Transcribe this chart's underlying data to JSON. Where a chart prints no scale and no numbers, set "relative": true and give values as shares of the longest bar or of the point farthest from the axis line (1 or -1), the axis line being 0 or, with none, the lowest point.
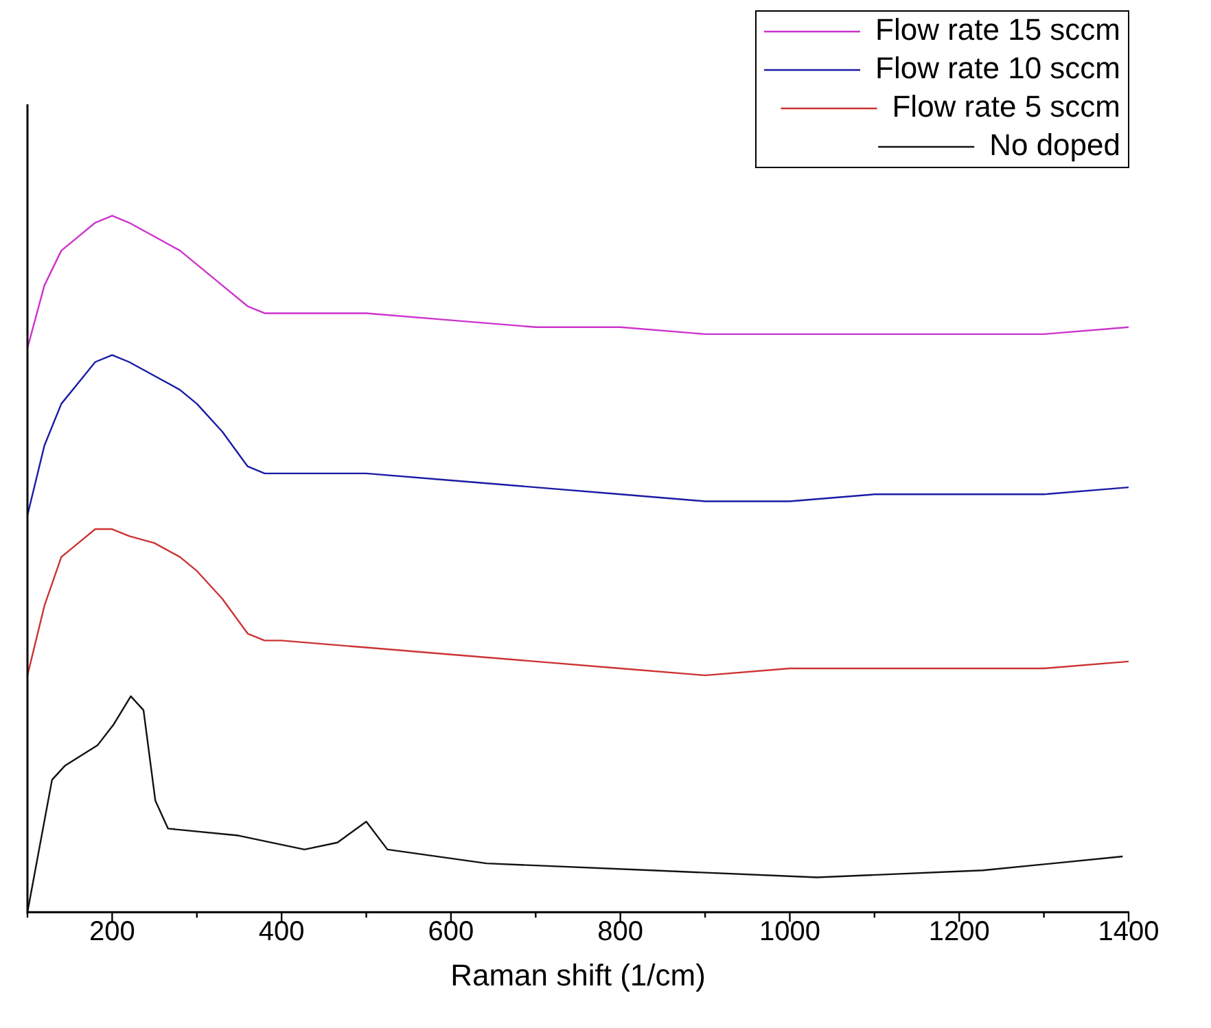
{
  "chart_data": {
    "type": "line",
    "xlabel": "Raman shift (1/cm)",
    "relative": true,
    "xlim": [
      100,
      1400
    ],
    "xticks": [
      {
        "value": 100,
        "label": null
      },
      200,
      {
        "value": 300,
        "label": null
      },
      400,
      {
        "value": 500,
        "label": null
      },
      600,
      {
        "value": 700,
        "label": null
      },
      800,
      {
        "value": 900,
        "label": null
      },
      1000,
      {
        "value": 1100,
        "label": null
      },
      1200,
      {
        "value": 1300,
        "label": null
      },
      1400
    ],
    "legend": "top right",
    "grid": false,
    "marker": "none",
    "line_style": "solid",
    "series": [
      {
        "name": "Flow rate 15 sccm",
        "color": "#cc33cc",
        "x": [
          100,
          120,
          140,
          160,
          180,
          200,
          220,
          250,
          280,
          300,
          330,
          360,
          380,
          400,
          500,
          600,
          700,
          800,
          900,
          1000,
          1100,
          1200,
          1300,
          1400
        ],
        "values": [
          0.81,
          0.9,
          0.95,
          0.97,
          0.99,
          1.0,
          0.99,
          0.97,
          0.95,
          0.93,
          0.9,
          0.87,
          0.86,
          0.86,
          0.86,
          0.85,
          0.84,
          0.84,
          0.83,
          0.83,
          0.83,
          0.83,
          0.83,
          0.84
        ]
      },
      {
        "name": "Flow rate 10 sccm",
        "color": "#1a1aa6",
        "x": [
          100,
          120,
          140,
          160,
          180,
          200,
          220,
          250,
          280,
          300,
          330,
          360,
          380,
          400,
          500,
          600,
          700,
          800,
          900,
          1000,
          1100,
          1200,
          1300,
          1400
        ],
        "values": [
          0.57,
          0.67,
          0.73,
          0.76,
          0.79,
          0.8,
          0.79,
          0.77,
          0.75,
          0.73,
          0.69,
          0.64,
          0.63,
          0.63,
          0.63,
          0.62,
          0.61,
          0.6,
          0.59,
          0.59,
          0.6,
          0.6,
          0.6,
          0.61
        ]
      },
      {
        "name": "Flow rate 5 sccm",
        "color": "#cc3333",
        "x": [
          100,
          120,
          140,
          160,
          180,
          200,
          220,
          250,
          280,
          300,
          330,
          360,
          380,
          400,
          500,
          600,
          700,
          800,
          900,
          1000,
          1100,
          1200,
          1300,
          1400
        ],
        "values": [
          0.34,
          0.44,
          0.51,
          0.53,
          0.55,
          0.55,
          0.54,
          0.53,
          0.51,
          0.49,
          0.45,
          0.4,
          0.39,
          0.39,
          0.38,
          0.37,
          0.36,
          0.35,
          0.34,
          0.35,
          0.35,
          0.35,
          0.35,
          0.36
        ]
      },
      {
        "name": "No doped",
        "color": "#111111",
        "x": [
          100,
          129,
          144,
          183,
          202,
          222,
          237,
          251,
          266,
          349,
          427,
          466,
          500,
          525,
          642,
          837,
          1032,
          1228,
          1393
        ],
        "values": [
          0,
          0.19,
          0.21,
          0.24,
          0.27,
          0.31,
          0.29,
          0.16,
          0.12,
          0.11,
          0.09,
          0.1,
          0.13,
          0.09,
          0.07,
          0.06,
          0.05,
          0.06,
          0.08
        ]
      }
    ]
  }
}
